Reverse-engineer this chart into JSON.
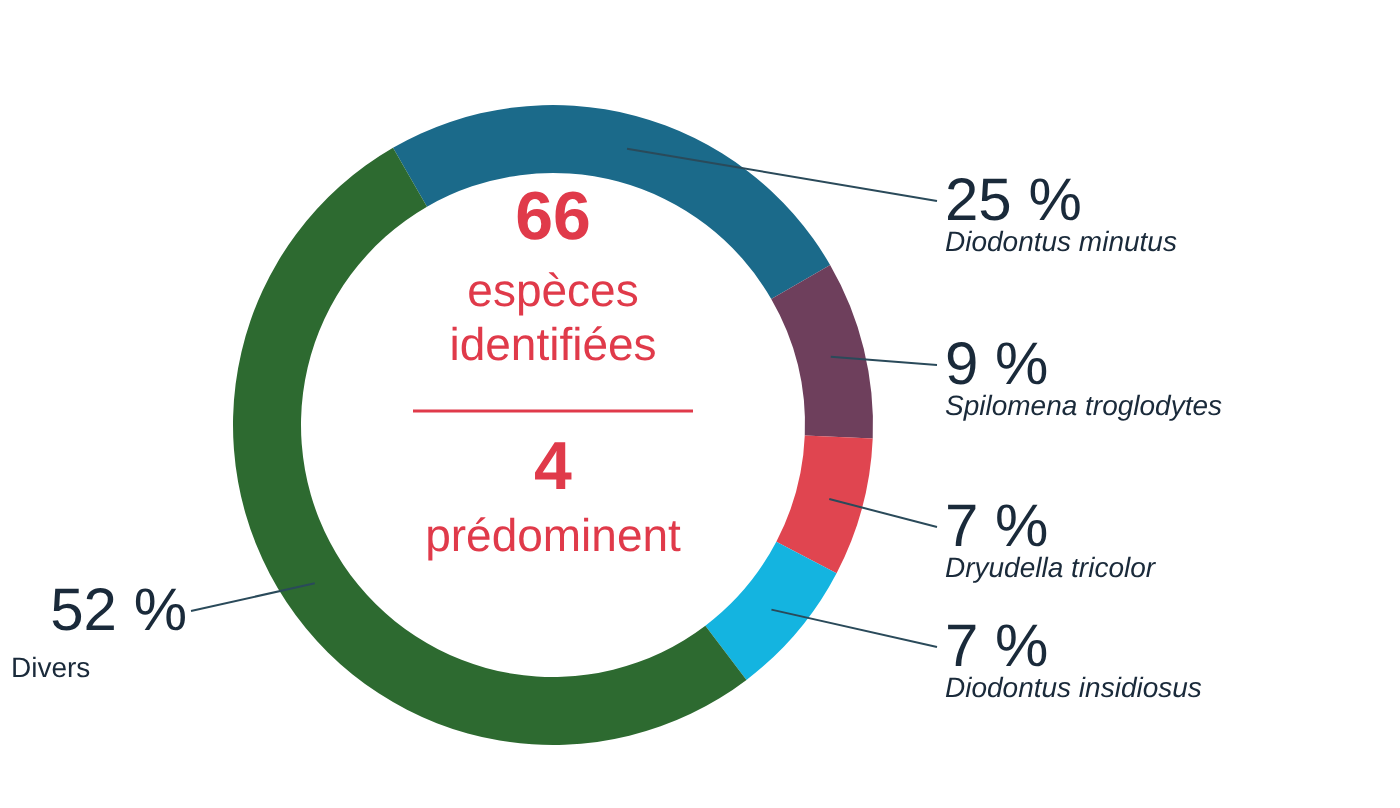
{
  "chart_data": {
    "type": "donut",
    "categories": [
      "Diodontus minutus",
      "Spilomena troglodytes",
      "Dryudella tricolor",
      "Diodontus insidiosus",
      "Divers"
    ],
    "values": [
      25,
      9,
      7,
      7,
      52
    ],
    "value_labels": [
      "25 %",
      "9 %",
      "7 %",
      "7 %",
      "52 %"
    ],
    "colors": [
      "#1b6a8a",
      "#6e3f5c",
      "#e04550",
      "#14b4e0",
      "#2d6a30"
    ],
    "annotations": [
      "66",
      "espèces identifiées",
      "4",
      "prédominent"
    ]
  }
}
